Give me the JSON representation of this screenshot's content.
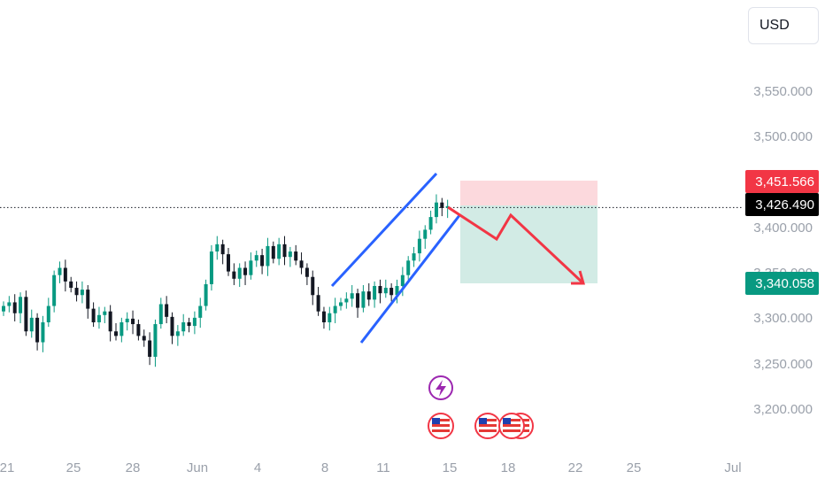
{
  "currency": "USD",
  "price_axis": {
    "labels": [
      "3,550.000",
      "3,500.000",
      "3,400.000",
      "3,350.000",
      "3,300.000",
      "3,250.000",
      "3,200.000"
    ],
    "values": [
      3550,
      3500,
      3400,
      3350,
      3300,
      3250,
      3200
    ]
  },
  "date_axis": {
    "labels": [
      "21",
      "25",
      "28",
      "Jun",
      "4",
      "8",
      "11",
      "15",
      "18",
      "22",
      "25",
      "Jul"
    ]
  },
  "tags": {
    "stop": {
      "text": "3,451.566",
      "value": 3451.566,
      "color": "#f23645"
    },
    "current": {
      "text": "3,426.490",
      "value": 3426.49,
      "color": "#000000"
    },
    "target": {
      "text": "3,340.058",
      "value": 3340.058,
      "color": "#089981"
    }
  },
  "colors": {
    "up_candle": "#089981",
    "down_candle": "#131722",
    "channel_line": "#2962ff",
    "projection_arrow": "#f23645",
    "risk_zone": "#fcd9dd",
    "reward_zone": "#d2ebe5",
    "event_icon_purple": "#9c27b0"
  },
  "events": {
    "icons": [
      "lightning-icon",
      "us-flag-icon",
      "us-flag-icon",
      "us-flag-icon",
      "us-flag-icon"
    ]
  },
  "chart_data": {
    "type": "candlestick",
    "symbol_currency": "USD",
    "period_start": "May 21",
    "period_end": "Jun 14",
    "y_range": [
      3170,
      3600
    ],
    "closes": [
      3318,
      3322,
      3310,
      3328,
      3290,
      3305,
      3278,
      3300,
      3318,
      3352,
      3360,
      3345,
      3338,
      3330,
      3336,
      3315,
      3300,
      3308,
      3312,
      3290,
      3285,
      3300,
      3304,
      3298,
      3285,
      3280,
      3262,
      3298,
      3320,
      3306,
      3285,
      3290,
      3300,
      3296,
      3305,
      3318,
      3342,
      3378,
      3386,
      3375,
      3356,
      3348,
      3360,
      3352,
      3368,
      3374,
      3362,
      3384,
      3370,
      3386,
      3372,
      3378,
      3368,
      3360,
      3350,
      3330,
      3312,
      3300,
      3310,
      3318,
      3322,
      3326,
      3332,
      3316,
      3334,
      3325,
      3340,
      3332,
      3338,
      3330,
      3340,
      3352,
      3368,
      3376,
      3392,
      3402,
      3416,
      3432,
      3426,
      3428
    ],
    "last_price": 3426.49,
    "position": {
      "stop": 3451.566,
      "entry": 3426.49,
      "target": 3340.058
    }
  }
}
